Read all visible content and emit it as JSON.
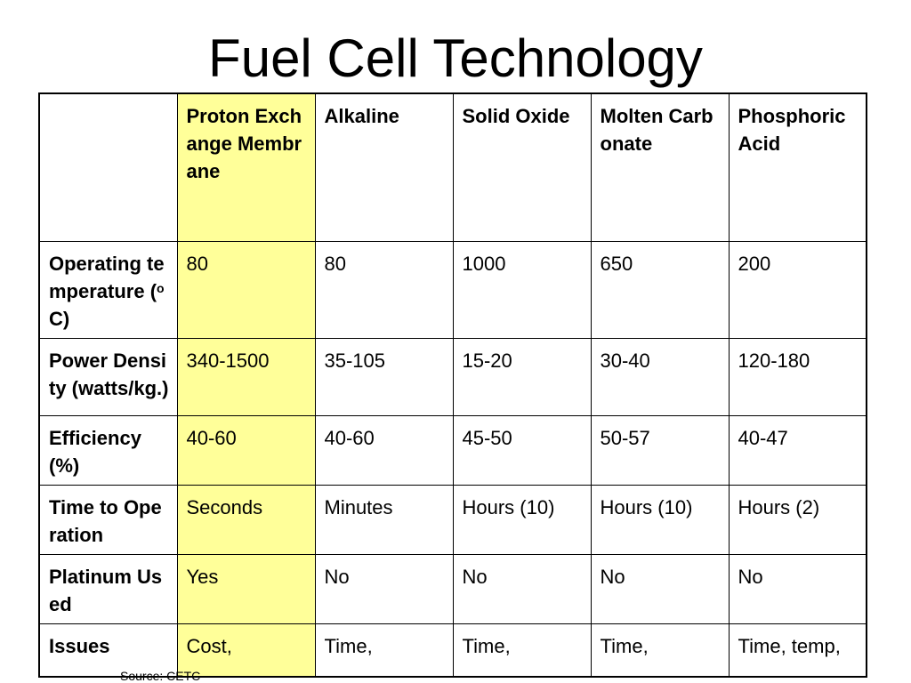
{
  "slide": {
    "title": "Fuel Cell Technology",
    "source": "Source: CETC"
  },
  "colors": {
    "highlight_column": "#ffff99",
    "border": "#000000",
    "background": "#ffffff"
  },
  "table": {
    "columns": [
      "",
      "Proton Exchange Membrane",
      "Alkaline",
      "Solid Oxide",
      "Molten Carbonate",
      "Phosphoric Acid"
    ],
    "rows": [
      {
        "label": "Operating temperature (°C)",
        "label_pre": "Operating temperature (",
        "label_sup": "o",
        "label_post": "C)",
        "cells": [
          "80",
          "80",
          "1000",
          "650",
          "200"
        ]
      },
      {
        "label": "Power Density (watts/kg.)",
        "cells": [
          "340-1500",
          "35-105",
          "15-20",
          "30-40",
          "120-180"
        ]
      },
      {
        "label": "Efficiency (%)",
        "cells": [
          "40-60",
          "40-60",
          "45-50",
          "50-57",
          "40-47"
        ]
      },
      {
        "label": "Time to Operation",
        "cells": [
          "Seconds",
          "Minutes",
          "Hours (10)",
          "Hours (10)",
          "Hours (2)"
        ]
      },
      {
        "label": "Platinum Used",
        "cells": [
          "Yes",
          "No",
          "No",
          "No",
          "No"
        ]
      },
      {
        "label": "Issues",
        "cells": [
          "Cost,",
          "Time,",
          "Time,",
          "Time,",
          "Time, temp,"
        ]
      }
    ]
  }
}
